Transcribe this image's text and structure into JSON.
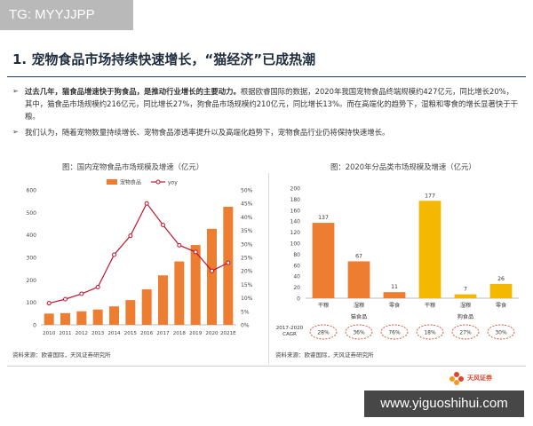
{
  "tag": "TG: MYYJJPP",
  "title": "1. 宠物食品市场持续快速增长，“猫经济”已成热潮",
  "bullets": [
    {
      "marker": "➢",
      "bold": "过去几年，猫食品增速快于狗食品，是推动行业增长的主要动力。",
      "text": "根据欧睿国际的数据，2020年我国宠物食品终端规模约427亿元，同比增长20%，其中，猫食品市场规模约216亿元，同比增长27%，狗食品市场规模约210亿元，同比增长13%。而在高端化的趋势下，湿粮和零食的增长显著快于干粮。"
    },
    {
      "marker": "➢",
      "bold": "",
      "text": "我们认为，随着宠物数量持续增长、宠物食品渗透率提升以及高端化趋势下，宠物食品行业仍将保持快速增长。"
    }
  ],
  "colors": {
    "bar": "#ed7d31",
    "line": "#c0152f",
    "cat": "#ed7d31",
    "dog": "#f5b800",
    "cagr_circle": "#d6482b"
  },
  "chart_data": [
    {
      "type": "bar",
      "title": "图：国内宠物食品市场规模及增速（亿元）",
      "categories": [
        "2010",
        "2011",
        "2012",
        "2013",
        "2014",
        "2015",
        "2016",
        "2017",
        "2018",
        "2019",
        "2020",
        "2021E"
      ],
      "series": [
        {
          "name": "宠物食品",
          "type": "bar",
          "axis": "left",
          "values": [
            50,
            52,
            60,
            68,
            82,
            110,
            158,
            220,
            282,
            355,
            427,
            525
          ]
        },
        {
          "name": "yoy",
          "type": "line",
          "axis": "right",
          "unit": "%",
          "values": [
            8,
            9.5,
            11.5,
            14,
            26,
            33,
            45,
            37,
            29.5,
            27,
            20,
            23
          ]
        }
      ],
      "ylim": [
        0,
        600
      ],
      "y_ticks": [
        0,
        100,
        200,
        300,
        400,
        500,
        600
      ],
      "y2lim": [
        0,
        50
      ],
      "y2_ticks": [
        "0%",
        "5%",
        "10%",
        "15%",
        "20%",
        "25%",
        "30%",
        "35%",
        "40%",
        "45%",
        "50%"
      ],
      "legend": "top-left",
      "source": "资料来源：欧睿国际，天风证券研究所"
    },
    {
      "type": "bar",
      "title": "图：2020年分品类市场规模及增速（亿元）",
      "categories": [
        "干粮",
        "湿粮",
        "零食",
        "干粮",
        "湿粮",
        "零食"
      ],
      "groups": [
        "猫食品",
        "狗食品"
      ],
      "values": [
        137,
        67,
        11,
        177,
        7,
        26
      ],
      "ylim": [
        0,
        200
      ],
      "y_ticks": [
        0,
        20,
        40,
        60,
        80,
        100,
        120,
        140,
        160,
        180,
        200
      ],
      "cagr_label": "2017-2020 CAGR",
      "cagr": [
        "28%",
        "36%",
        "76%",
        "18%",
        "27%",
        "30%"
      ],
      "source": "资料来源：欧睿国际，天风证券研究所"
    }
  ],
  "logo_text": "天风证券",
  "watermark": "www.yiguoshihui.com"
}
